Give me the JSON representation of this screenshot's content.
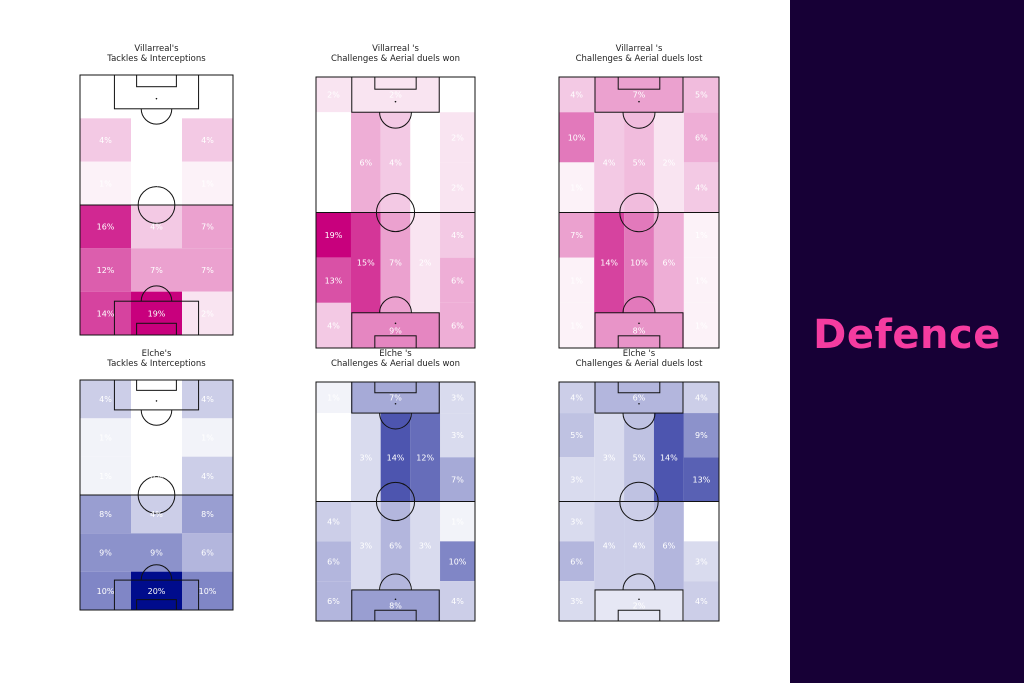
{
  "side_title": "Defence",
  "colors": {
    "panel_bg": "#170036",
    "accent": "#f53ca0",
    "villarreal_scale": "#c8007d",
    "elche_scale": "#000c8c"
  },
  "chart_data": [
    {
      "type": "heatmap",
      "id": "villarreal-tackles",
      "title_line1": "Villarreal's",
      "title_line2": "Tackles & Interceptions",
      "team": "villarreal",
      "grid": "6x3",
      "cells": [
        [
          "0%",
          "0%",
          "0%"
        ],
        [
          "4%",
          "0%",
          "4%"
        ],
        [
          "1%",
          "0%",
          "1%"
        ],
        [
          "16%",
          "4%",
          "7%"
        ],
        [
          "12%",
          "7%",
          "7%"
        ],
        [
          "14%",
          "19%",
          "2%"
        ]
      ]
    },
    {
      "type": "heatmap",
      "id": "villarreal-won",
      "title_line1": "Villarreal 's",
      "title_line2": "Challenges & Aerial duels won",
      "team": "villarreal",
      "grid": "hybrid",
      "top_left": "2%",
      "top_center": "2%",
      "top_right": "0%",
      "mid_left": [
        "0%",
        "0%"
      ],
      "mid_center": [
        "6%",
        "4%",
        "0%"
      ],
      "mid_right": [
        "2%",
        "2%"
      ],
      "bot_left": [
        "19%",
        "13%",
        "4%"
      ],
      "bot_center": [
        "15%",
        "7%",
        "2%"
      ],
      "bot_right": [
        "4%",
        "6%",
        "6%"
      ],
      "box_bottom": "9%"
    },
    {
      "type": "heatmap",
      "id": "villarreal-lost",
      "title_line1": "Villarreal 's",
      "title_line2": "Challenges & Aerial duels lost",
      "team": "villarreal",
      "grid": "hybrid",
      "top_left": "4%",
      "top_center": "7%",
      "top_right": "5%",
      "mid_left": [
        "10%",
        "1%"
      ],
      "mid_center": [
        "4%",
        "5%",
        "2%"
      ],
      "mid_right": [
        "6%",
        "4%"
      ],
      "bot_left": [
        "7%",
        "1%",
        "1%"
      ],
      "bot_center": [
        "14%",
        "10%",
        "6%"
      ],
      "bot_right": [
        "1%",
        "1%",
        "1%"
      ],
      "box_bottom": "8%"
    },
    {
      "type": "heatmap",
      "id": "elche-tackles",
      "title_line1": "Elche's",
      "title_line2": "Tackles & Interceptions",
      "team": "elche",
      "grid": "6x3",
      "cells": [
        [
          "4%",
          "0%",
          "4%"
        ],
        [
          "1%",
          "0%",
          "1%"
        ],
        [
          "1%",
          "0%",
          "4%"
        ],
        [
          "8%",
          "4%",
          "8%"
        ],
        [
          "9%",
          "9%",
          "6%"
        ],
        [
          "10%",
          "20%",
          "10%"
        ]
      ]
    },
    {
      "type": "heatmap",
      "id": "elche-won",
      "title_line1": "Elche 's",
      "title_line2": "Challenges & Aerial duels won",
      "team": "elche",
      "grid": "hybrid",
      "top_left": "1%",
      "top_center": "7%",
      "top_right": "3%",
      "mid_left": [
        "0%",
        "0%"
      ],
      "mid_center": [
        "3%",
        "14%",
        "12%"
      ],
      "mid_right": [
        "3%",
        "7%"
      ],
      "bot_left": [
        "4%",
        "6%",
        "6%"
      ],
      "bot_center": [
        "3%",
        "6%",
        "3%"
      ],
      "bot_right": [
        "1%",
        "10%",
        "4%"
      ],
      "box_bottom": "8%"
    },
    {
      "type": "heatmap",
      "id": "elche-lost",
      "title_line1": "Elche 's",
      "title_line2": "Challenges & Aerial duels lost",
      "team": "elche",
      "grid": "hybrid",
      "top_left": "4%",
      "top_center": "6%",
      "top_right": "4%",
      "mid_left": [
        "5%",
        "3%"
      ],
      "mid_center": [
        "3%",
        "5%",
        "14%"
      ],
      "mid_right": [
        "9%",
        "13%"
      ],
      "bot_left": [
        "3%",
        "6%",
        "3%"
      ],
      "bot_center": [
        "4%",
        "4%",
        "6%"
      ],
      "bot_right": [
        "0%",
        "3%",
        "4%"
      ],
      "box_bottom": "2%"
    }
  ]
}
